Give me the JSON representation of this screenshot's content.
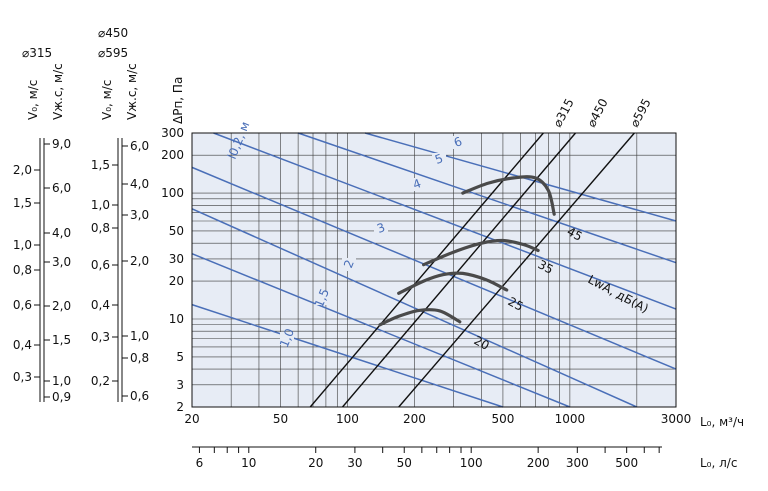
{
  "chart_data": {
    "type": "line",
    "y_axis_title": "ΔPп, Па",
    "x_axis_title": "L₀, м³/ч",
    "x2_axis_title": "L₀, л/с",
    "x_ticks": [
      "20",
      "50",
      "100",
      "200",
      "500",
      "1000",
      "3000"
    ],
    "x2_ticks": [
      "6",
      "10",
      "20",
      "30",
      "50",
      "100",
      "200",
      "300",
      "500"
    ],
    "y_ticks": [
      "2",
      "3",
      "5",
      "10",
      "20",
      "30",
      "50",
      "100",
      "200",
      "300"
    ],
    "xlim": [
      20,
      3000
    ],
    "ylim": [
      2,
      300
    ],
    "scale": "log-log",
    "grid": true,
    "left_scales": {
      "d315_header": "⌀315",
      "d450_header": "⌀450",
      "d595_header": "⌀595",
      "v0_label": "V₀, м/с",
      "vjs_label": "Vж.с, м/с",
      "scale1_ticks": [
        "2,0",
        "1,5",
        "1,0",
        "0,8",
        "0,6",
        "0,4",
        "0,3"
      ],
      "scale2_ticks": [
        "9,0",
        "6,0",
        "4,0",
        "3,0",
        "2,0",
        "1,5",
        "1,0",
        "0,9"
      ],
      "scale3_ticks": [
        "1,5",
        "1,0",
        "0,8",
        "0,6",
        "0,4",
        "0,3",
        "0,2"
      ],
      "scale4_ticks": [
        "6,0",
        "4,0",
        "3,0",
        "2,0",
        "1,0",
        "0,8",
        "0,6"
      ]
    },
    "duct_lines": [
      {
        "name": "⌀315",
        "points": [
          [
            68,
            2
          ],
          [
            760,
            300
          ]
        ]
      },
      {
        "name": "⌀450",
        "points": [
          [
            95,
            2
          ],
          [
            1060,
            300
          ]
        ]
      },
      {
        "name": "⌀595",
        "points": [
          [
            170,
            2
          ],
          [
            1950,
            300
          ]
        ]
      }
    ],
    "throw_lines": {
      "label": "l0,2, м",
      "values": [
        "1,0",
        "1,5",
        "2",
        "3",
        "4",
        "5",
        "6"
      ],
      "lines": [
        {
          "label": "1,0",
          "points": [
            [
              20,
              13
            ],
            [
              500,
              2
            ]
          ]
        },
        {
          "label": "1,5",
          "points": [
            [
              20,
              33
            ],
            [
              1000,
              2
            ]
          ]
        },
        {
          "label": "2",
          "points": [
            [
              20,
              75
            ],
            [
              2000,
              2
            ]
          ]
        },
        {
          "label": "3",
          "points": [
            [
              20,
              160
            ],
            [
              3000,
              4
            ]
          ]
        },
        {
          "label": "4",
          "points": [
            [
              25,
              300
            ],
            [
              3000,
              12
            ]
          ]
        },
        {
          "label": "5",
          "points": [
            [
              60,
              300
            ],
            [
              3000,
              28
            ]
          ]
        },
        {
          "label": "6",
          "points": [
            [
              120,
              300
            ],
            [
              3000,
              60
            ]
          ]
        }
      ]
    },
    "noise_curves": {
      "label": "LwA, дБ(A)",
      "curves": [
        {
          "label": "20",
          "points": [
            [
              140,
              9
            ],
            [
              170,
              10.5
            ],
            [
              210,
              11.7
            ],
            [
              260,
              11.6
            ],
            [
              320,
              9.5
            ]
          ]
        },
        {
          "label": "25",
          "points": [
            [
              170,
              16
            ],
            [
              220,
              20
            ],
            [
              270,
              22.5
            ],
            [
              330,
              23
            ],
            [
              420,
              20.5
            ],
            [
              520,
              17
            ]
          ]
        },
        {
          "label": "35",
          "points": [
            [
              220,
              27
            ],
            [
              300,
              34
            ],
            [
              400,
              40
            ],
            [
              500,
              42
            ],
            [
              620,
              39
            ],
            [
              720,
              35
            ]
          ]
        },
        {
          "label": "45",
          "points": [
            [
              330,
              100
            ],
            [
              430,
              120
            ],
            [
              560,
              132
            ],
            [
              700,
              132
            ],
            [
              800,
              105
            ],
            [
              850,
              68
            ]
          ]
        }
      ]
    }
  }
}
